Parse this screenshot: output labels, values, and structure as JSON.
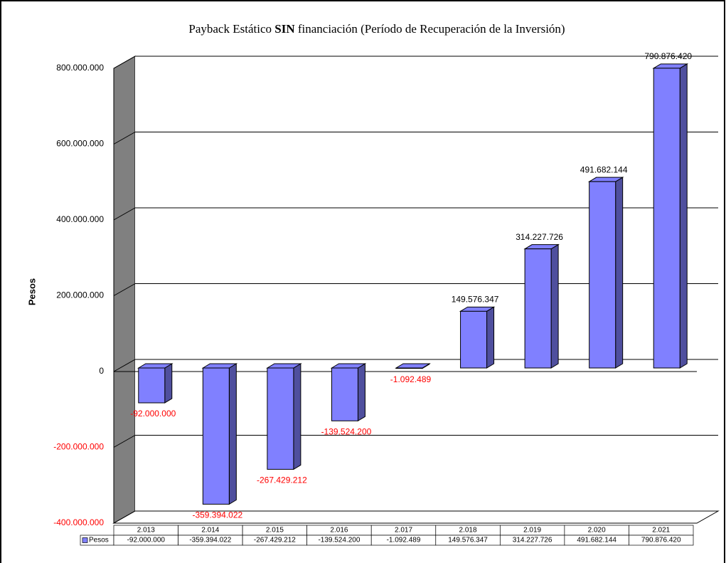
{
  "chart_data": {
    "type": "bar3d",
    "title": [
      {
        "text": "Payback Estático "
      },
      {
        "text": "SIN",
        "bold": true
      },
      {
        "text": " financiación (Período de Recuperación de la Inversión)"
      }
    ],
    "ylabel": "Pesos",
    "categories": [
      "2.013",
      "2.014",
      "2.015",
      "2.016",
      "2.017",
      "2.018",
      "2.019",
      "2.020",
      "2.021"
    ],
    "series": [
      {
        "name": "Pesos",
        "color": "#8080ff",
        "values": [
          -92000000,
          -359394022,
          -267429212,
          -139524200,
          -1092489,
          149576347,
          314227726,
          491682144,
          790876420
        ],
        "value_labels": [
          "-92.000.000",
          "-359.394.022",
          "-267.429.212",
          "-139.524.200",
          "-1.092.489",
          "149.576.347",
          "314.227.726",
          "491.682.144",
          "790.876.420"
        ]
      }
    ],
    "ylim": [
      -400000000,
      800000000
    ],
    "yticks": [
      {
        "value": -400000000,
        "label": "-400.000.000"
      },
      {
        "value": -200000000,
        "label": "-200.000.000"
      },
      0,
      {
        "value": 200000000,
        "label": "200.000.000"
      },
      {
        "value": 400000000,
        "label": "400.000.000"
      },
      {
        "value": 600000000,
        "label": "600.000.000"
      },
      {
        "value": 800000000,
        "label": "800.000.000"
      }
    ],
    "grid": true,
    "negative_color": "#ff0000"
  }
}
